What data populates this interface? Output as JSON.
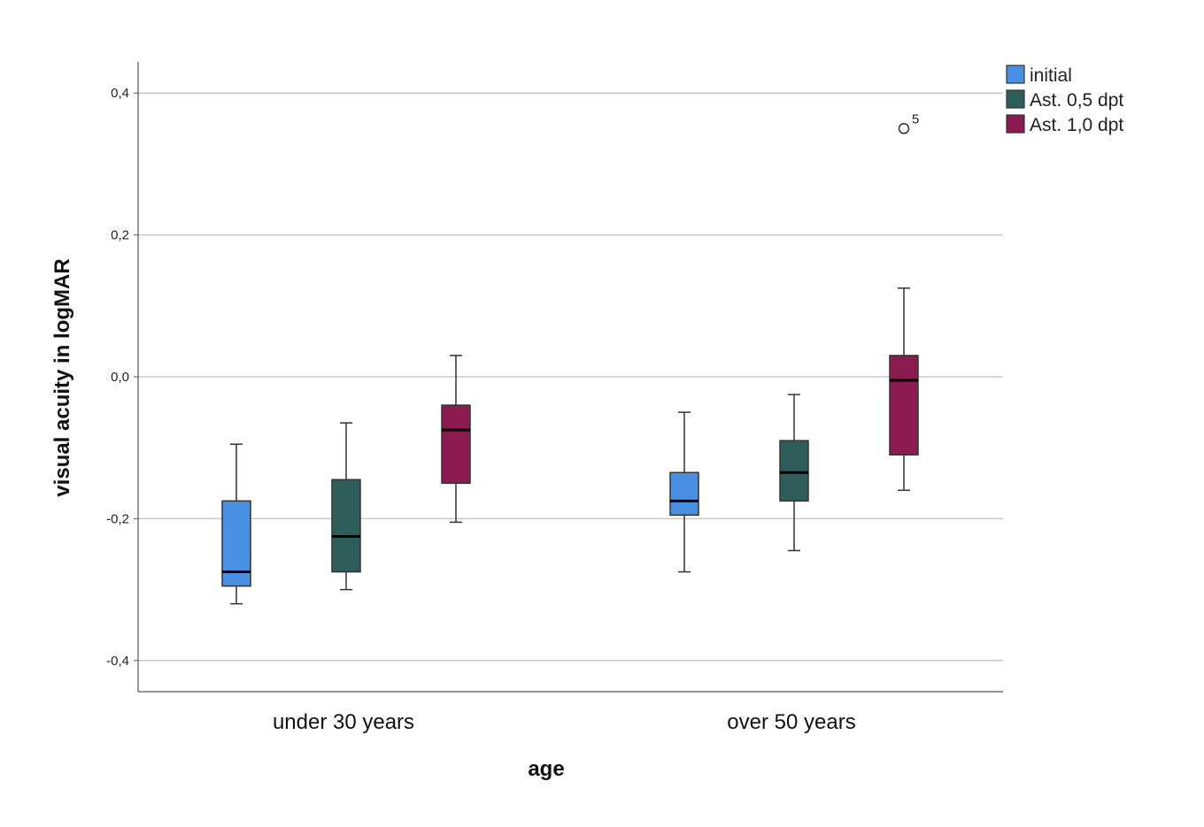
{
  "chart_data": {
    "type": "boxplot",
    "xlabel": "age",
    "ylabel": "visual acuity in logMAR",
    "ylim": [
      -0.445,
      0.445
    ],
    "yticks": [
      {
        "value": 0.4,
        "label": "0,4"
      },
      {
        "value": 0.2,
        "label": "0,2"
      },
      {
        "value": 0.0,
        "label": "0,0"
      },
      {
        "value": -0.2,
        "label": "-0,2"
      },
      {
        "value": -0.4,
        "label": "-0,4"
      }
    ],
    "grid": true,
    "legend_position": "top-right",
    "categories": [
      "under 30 years",
      "over 50 years"
    ],
    "series": [
      {
        "name": "initial",
        "color": "#4a90e2",
        "boxes": [
          {
            "whisker_low": -0.32,
            "q1": -0.295,
            "median": -0.275,
            "q3": -0.175,
            "whisker_high": -0.095
          },
          {
            "whisker_low": -0.275,
            "q1": -0.195,
            "median": -0.175,
            "q3": -0.135,
            "whisker_high": -0.05
          }
        ],
        "outliers": []
      },
      {
        "name": "Ast. 0,5 dpt",
        "color": "#2f5e5a",
        "boxes": [
          {
            "whisker_low": -0.3,
            "q1": -0.275,
            "median": -0.225,
            "q3": -0.145,
            "whisker_high": -0.065
          },
          {
            "whisker_low": -0.245,
            "q1": -0.175,
            "median": -0.135,
            "q3": -0.09,
            "whisker_high": -0.025
          }
        ],
        "outliers": []
      },
      {
        "name": "Ast. 1,0 dpt",
        "color": "#8b1a4f",
        "boxes": [
          {
            "whisker_low": -0.205,
            "q1": -0.15,
            "median": -0.075,
            "q3": -0.04,
            "whisker_high": 0.03
          },
          {
            "whisker_low": -0.16,
            "q1": -0.11,
            "median": -0.005,
            "q3": 0.03,
            "whisker_high": 0.125
          }
        ],
        "outliers": [
          {
            "category_index": 1,
            "value": 0.35,
            "label": "5"
          }
        ]
      }
    ]
  }
}
